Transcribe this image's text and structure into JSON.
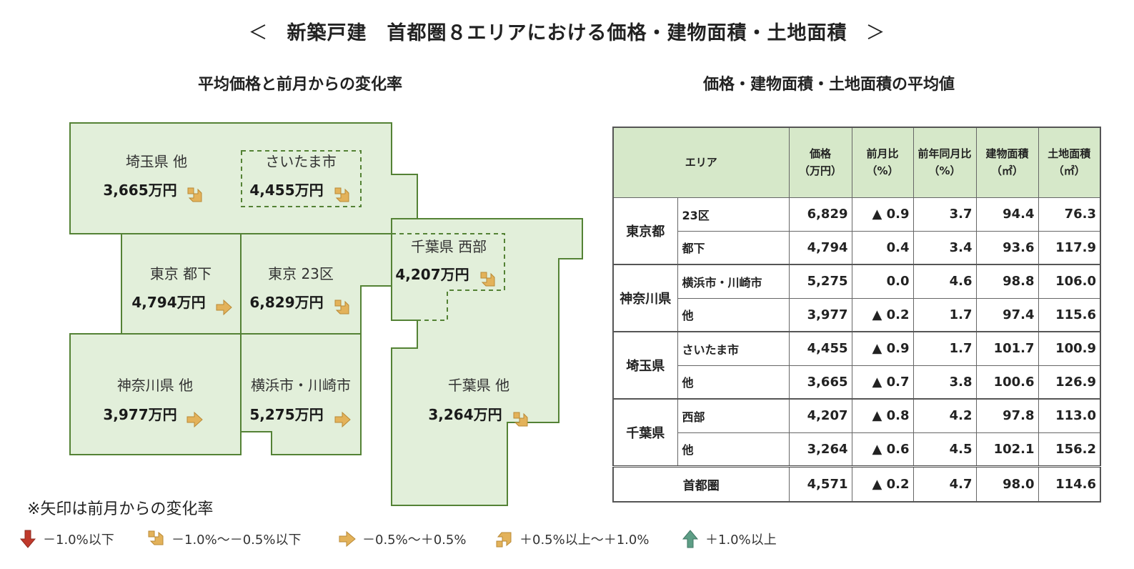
{
  "title": {
    "open_bracket": "＜",
    "text": "新築戸建　首都圏８エリアにおける価格・建物面積・土地面積",
    "close_bracket": "＞"
  },
  "map_title": "平均価格と前月からの変化率",
  "table_title": "価格・建物面積・土地面積の平均値",
  "map_regions": [
    {
      "key": "saitama_other",
      "label": "埼玉県 他",
      "value": "3,665万円",
      "arrow": "down-right"
    },
    {
      "key": "saitama_city",
      "label": "さいたま市",
      "value": "4,455万円",
      "arrow": "down-right"
    },
    {
      "key": "chiba_west",
      "label": "千葉県 西部",
      "value": "4,207万円",
      "arrow": "down-right"
    },
    {
      "key": "tokyo_toka",
      "label": "東京 都下",
      "value": "4,794万円",
      "arrow": "right"
    },
    {
      "key": "tokyo_23",
      "label": "東京 23区",
      "value": "6,829万円",
      "arrow": "down-right"
    },
    {
      "key": "kanagawa_other",
      "label": "神奈川県 他",
      "value": "3,977万円",
      "arrow": "right"
    },
    {
      "key": "yokohama_kawasaki",
      "label": "横浜市・川崎市",
      "value": "5,275万円",
      "arrow": "right"
    },
    {
      "key": "chiba_other",
      "label": "千葉県 他",
      "value": "3,264万円",
      "arrow": "down-right"
    }
  ],
  "table": {
    "headers": {
      "area": "エリア",
      "price": [
        "価格",
        "（万円）"
      ],
      "mom": [
        "前月比",
        "（%）"
      ],
      "yoy": [
        "前年同月比",
        "（%）"
      ],
      "building": [
        "建物面積",
        "（㎡）"
      ],
      "land": [
        "土地面積",
        "（㎡）"
      ]
    },
    "rows": [
      {
        "pref": "東京都",
        "sub": "23区",
        "price": "6,829",
        "mom": "▲ 0.9",
        "yoy": "3.7",
        "building": "94.4",
        "land": "76.3"
      },
      {
        "pref": "",
        "sub": "都下",
        "price": "4,794",
        "mom": "0.4",
        "yoy": "3.4",
        "building": "93.6",
        "land": "117.9"
      },
      {
        "pref": "神奈川県",
        "sub": "横浜市・川崎市",
        "price": "5,275",
        "mom": "0.0",
        "yoy": "4.6",
        "building": "98.8",
        "land": "106.0"
      },
      {
        "pref": "",
        "sub": "他",
        "price": "3,977",
        "mom": "▲ 0.2",
        "yoy": "1.7",
        "building": "97.4",
        "land": "115.6"
      },
      {
        "pref": "埼玉県",
        "sub": "さいたま市",
        "price": "4,455",
        "mom": "▲ 0.9",
        "yoy": "1.7",
        "building": "101.7",
        "land": "100.9"
      },
      {
        "pref": "",
        "sub": "他",
        "price": "3,665",
        "mom": "▲ 0.7",
        "yoy": "3.8",
        "building": "100.6",
        "land": "126.9"
      },
      {
        "pref": "千葉県",
        "sub": "西部",
        "price": "4,207",
        "mom": "▲ 0.8",
        "yoy": "4.2",
        "building": "97.8",
        "land": "113.0"
      },
      {
        "pref": "",
        "sub": "他",
        "price": "3,264",
        "mom": "▲ 0.6",
        "yoy": "4.5",
        "building": "102.1",
        "land": "156.2"
      }
    ],
    "total": {
      "label": "首都圏",
      "price": "4,571",
      "mom": "▲ 0.2",
      "yoy": "4.7",
      "building": "98.0",
      "land": "114.6"
    }
  },
  "note": "※矢印は前月からの変化率",
  "legend": [
    {
      "arrow": "down",
      "label": "－1.0%以下"
    },
    {
      "arrow": "down-right",
      "label": "－1.0%～－0.5%以下"
    },
    {
      "arrow": "right",
      "label": "－0.5%～＋0.5%"
    },
    {
      "arrow": "up-right",
      "label": "＋0.5%以上～＋1.0%"
    },
    {
      "arrow": "up",
      "label": "＋1.0%以上"
    }
  ],
  "colors": {
    "map_fill": "#e2efda",
    "map_border": "#548235",
    "table_header": "#d6e8c9",
    "arrow_down": "#c0392b",
    "arrow_mid": "#e3b25a",
    "arrow_up": "#5e9e86"
  },
  "chart_data": {
    "type": "table",
    "title": "新築戸建　首都圏８エリアにおける価格・建物面積・土地面積",
    "columns": [
      "エリア",
      "価格（万円）",
      "前月比（%）",
      "前年同月比（%）",
      "建物面積（㎡）",
      "土地面積（㎡）"
    ],
    "rows": [
      [
        "東京都 23区",
        6829,
        -0.9,
        3.7,
        94.4,
        76.3
      ],
      [
        "東京都 都下",
        4794,
        0.4,
        3.4,
        93.6,
        117.9
      ],
      [
        "神奈川県 横浜市・川崎市",
        5275,
        0.0,
        4.6,
        98.8,
        106.0
      ],
      [
        "神奈川県 他",
        3977,
        -0.2,
        1.7,
        97.4,
        115.6
      ],
      [
        "埼玉県 さいたま市",
        4455,
        -0.9,
        1.7,
        101.7,
        100.9
      ],
      [
        "埼玉県 他",
        3665,
        -0.7,
        3.8,
        100.6,
        126.9
      ],
      [
        "千葉県 西部",
        4207,
        -0.8,
        4.2,
        97.8,
        113.0
      ],
      [
        "千葉県 他",
        3264,
        -0.6,
        4.5,
        102.1,
        156.2
      ],
      [
        "首都圏",
        4571,
        -0.2,
        4.7,
        98.0,
        114.6
      ]
    ]
  }
}
